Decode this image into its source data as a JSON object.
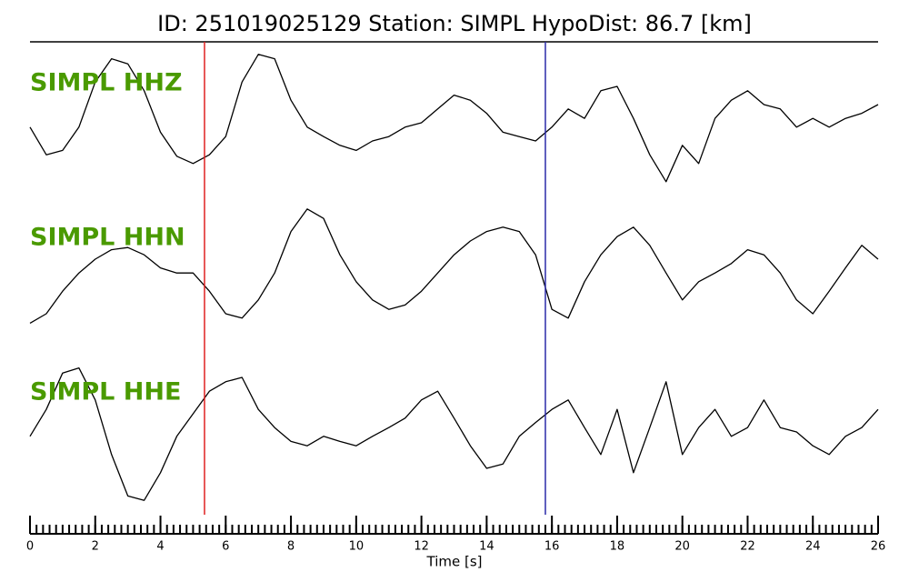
{
  "chart_data": {
    "type": "line",
    "title": "ID: 251019025129   Station: SIMPL   HypoDist:    86.7 [km]",
    "xlabel": "Time [s]",
    "xlim": [
      0,
      26
    ],
    "xticks": [
      0,
      2,
      4,
      6,
      8,
      10,
      12,
      14,
      16,
      18,
      20,
      22,
      24,
      26
    ],
    "xminorticks": [
      0,
      0.2,
      0.4,
      0.6,
      0.8,
      1,
      1.2,
      1.4,
      1.6,
      1.8,
      2,
      2.2,
      2.4,
      2.6,
      2.8,
      3,
      3.2,
      3.4,
      3.6,
      3.8,
      4,
      4.2,
      4.4,
      4.6,
      4.8,
      5,
      5.2,
      5.4,
      5.6,
      5.8,
      6,
      6.2,
      6.4,
      6.6,
      6.8,
      7,
      7.2,
      7.4,
      7.6,
      7.8,
      8,
      8.2,
      8.4,
      8.6,
      8.8,
      9,
      9.2,
      9.4,
      9.6,
      9.8,
      10,
      10.2,
      10.4,
      10.6,
      10.8,
      11,
      11.2,
      11.4,
      11.6,
      11.8,
      12,
      12.2,
      12.4,
      12.6,
      12.8,
      13,
      13.2,
      13.4,
      13.6,
      13.8,
      14,
      14.2,
      14.4,
      14.6,
      14.8,
      15,
      15.2,
      15.4,
      15.6,
      15.8,
      16,
      16.2,
      16.4,
      16.6,
      16.8,
      17,
      17.2,
      17.4,
      17.6,
      17.8,
      18,
      18.2,
      18.4,
      18.6,
      18.8,
      19,
      19.2,
      19.4,
      19.6,
      19.8,
      20,
      20.2,
      20.4,
      20.6,
      20.8,
      21,
      21.2,
      21.4,
      21.6,
      21.8,
      22,
      22.2,
      22.4,
      22.6,
      22.8,
      23,
      23.2,
      23.4,
      23.6,
      23.8,
      24,
      24.2,
      24.4,
      24.6,
      24.8,
      25,
      25.2,
      25.4,
      25.6,
      25.8,
      26
    ],
    "ylim": [
      -1,
      1
    ],
    "label_color": "#4a9a00",
    "x": [
      0,
      0.5,
      1,
      1.5,
      2,
      2.5,
      3,
      3.5,
      4,
      4.5,
      5,
      5.5,
      6,
      6.5,
      7,
      7.5,
      8,
      8.5,
      9,
      9.5,
      10,
      10.5,
      11,
      11.5,
      12,
      12.5,
      13,
      13.5,
      14,
      14.5,
      15,
      15.5,
      16,
      16.5,
      17,
      17.5,
      18,
      18.5,
      19,
      19.5,
      20,
      20.5,
      21,
      21.5,
      22,
      22.5,
      23,
      23.5,
      24,
      24.5,
      25,
      25.5,
      26
    ],
    "series": [
      {
        "name": "SIMPL HHZ",
        "color": "#000000",
        "values": [
          -0.06,
          -0.44,
          -0.38,
          -0.06,
          0.56,
          0.88,
          0.81,
          0.44,
          -0.13,
          -0.46,
          -0.56,
          -0.44,
          -0.19,
          0.56,
          0.94,
          0.88,
          0.31,
          -0.06,
          -0.19,
          -0.31,
          -0.38,
          -0.25,
          -0.19,
          -0.06,
          0,
          0.19,
          0.38,
          0.31,
          0.13,
          -0.13,
          -0.19,
          -0.25,
          -0.06,
          0.19,
          0.06,
          0.44,
          0.5,
          0.06,
          -0.44,
          -0.81,
          -0.31,
          -0.56,
          0.06,
          0.31,
          0.44,
          0.25,
          0.19,
          -0.06,
          0.06,
          -0.06,
          0.06,
          0.13,
          0.25
        ]
      },
      {
        "name": "SIMPL HHN",
        "color": "#000000",
        "values": [
          -0.63,
          -0.5,
          -0.19,
          0.06,
          0.25,
          0.38,
          0.41,
          0.31,
          0.13,
          0.06,
          0.06,
          -0.19,
          -0.5,
          -0.56,
          -0.31,
          0.06,
          0.63,
          0.94,
          0.81,
          0.31,
          -0.06,
          -0.31,
          -0.44,
          -0.38,
          -0.19,
          0.06,
          0.31,
          0.5,
          0.63,
          0.69,
          0.63,
          0.31,
          -0.44,
          -0.56,
          -0.06,
          0.31,
          0.56,
          0.69,
          0.44,
          0.06,
          -0.31,
          -0.06,
          0.06,
          0.19,
          0.38,
          0.31,
          0.06,
          -0.31,
          -0.5,
          -0.19,
          0.13,
          0.44,
          0.25
        ]
      },
      {
        "name": "SIMPL HHE",
        "color": "#000000",
        "values": [
          -0.06,
          0.31,
          0.81,
          0.88,
          0.44,
          -0.31,
          -0.88,
          -0.94,
          -0.56,
          -0.06,
          0.25,
          0.56,
          0.69,
          0.75,
          0.31,
          0.06,
          -0.13,
          -0.19,
          -0.06,
          -0.13,
          -0.19,
          -0.06,
          0.06,
          0.19,
          0.44,
          0.56,
          0.19,
          -0.19,
          -0.5,
          -0.44,
          -0.06,
          0.13,
          0.31,
          0.44,
          0.06,
          -0.31,
          0.31,
          -0.56,
          0.06,
          0.69,
          -0.31,
          0.06,
          0.31,
          -0.06,
          0.06,
          0.44,
          0.06,
          0,
          -0.19,
          -0.31,
          -0.06,
          0.06,
          0.31
        ]
      }
    ],
    "markers": [
      {
        "x": 5.35,
        "color": "#e02020"
      },
      {
        "x": 15.8,
        "color": "#2a2aa8"
      }
    ]
  }
}
